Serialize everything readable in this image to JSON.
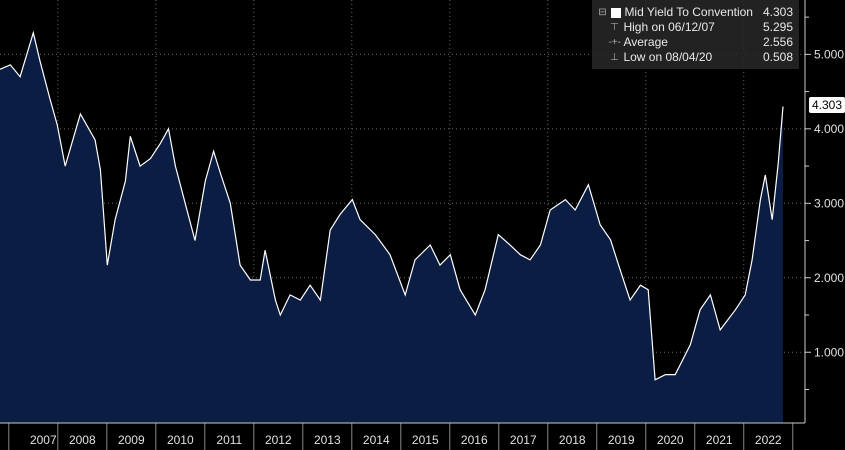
{
  "chart_data": {
    "type": "area",
    "title": "",
    "xlabel": "",
    "ylabel": "",
    "xlim": [
      2006.82,
      2023.25
    ],
    "ylim": [
      0.05,
      5.73
    ],
    "x_tick_labels": [
      "2007",
      "2008",
      "2009",
      "2010",
      "2011",
      "2012",
      "2013",
      "2014",
      "2015",
      "2016",
      "2017",
      "2018",
      "2019",
      "2020",
      "2021",
      "2022"
    ],
    "y_ticks": [
      1,
      2,
      3,
      4,
      5
    ],
    "y_tick_labels": [
      "1.000",
      "2.000",
      "3.000",
      "4.000",
      "5.000"
    ],
    "grid": true,
    "legend_position": "top-right",
    "last_value_label": "4.303",
    "legend": [
      {
        "label": "Mid Yield To Convention",
        "value": "4.303",
        "icon": "white-square"
      },
      {
        "label": "High on 06/12/07",
        "value": "5.295",
        "icon": "high-marker"
      },
      {
        "label": "Average",
        "value": "2.556",
        "icon": "average-marker"
      },
      {
        "label": "Low on 08/04/20",
        "value": "0.508",
        "icon": "low-marker"
      }
    ],
    "series": [
      {
        "name": "Mid Yield To Convention",
        "x": [
          2006.82,
          2007.03,
          2007.23,
          2007.5,
          2007.64,
          2007.84,
          2007.99,
          2008.15,
          2008.46,
          2008.76,
          2008.87,
          2009.01,
          2009.17,
          2009.38,
          2009.48,
          2009.68,
          2009.89,
          2010.09,
          2010.26,
          2010.4,
          2010.6,
          2010.8,
          2011.01,
          2011.18,
          2011.32,
          2011.52,
          2011.72,
          2011.93,
          2012.13,
          2012.23,
          2012.44,
          2012.54,
          2012.74,
          2012.95,
          2013.15,
          2013.36,
          2013.56,
          2013.76,
          2014.01,
          2014.17,
          2014.48,
          2014.78,
          2015.09,
          2015.29,
          2015.6,
          2015.8,
          2016.01,
          2016.21,
          2016.52,
          2016.72,
          2016.99,
          2017.23,
          2017.44,
          2017.64,
          2017.85,
          2018.05,
          2018.36,
          2018.56,
          2018.83,
          2019.07,
          2019.28,
          2019.48,
          2019.68,
          2019.89,
          2020.05,
          2020.19,
          2020.4,
          2020.6,
          2020.91,
          2021.11,
          2021.32,
          2021.52,
          2021.83,
          2022.03,
          2022.17,
          2022.34,
          2022.44,
          2022.58,
          2022.7,
          2022.8
        ],
        "y": [
          4.8,
          4.86,
          4.7,
          5.29,
          4.9,
          4.4,
          4.05,
          3.5,
          4.2,
          3.85,
          3.45,
          2.17,
          2.78,
          3.3,
          3.9,
          3.5,
          3.6,
          3.8,
          4.0,
          3.5,
          3.0,
          2.5,
          3.3,
          3.7,
          3.4,
          3.0,
          2.17,
          1.97,
          1.97,
          2.37,
          1.7,
          1.5,
          1.77,
          1.7,
          1.9,
          1.7,
          2.64,
          2.85,
          3.05,
          2.78,
          2.58,
          2.31,
          1.77,
          2.24,
          2.44,
          2.17,
          2.31,
          1.84,
          1.5,
          1.84,
          2.58,
          2.44,
          2.31,
          2.24,
          2.44,
          2.91,
          3.05,
          2.91,
          3.25,
          2.71,
          2.51,
          2.1,
          1.7,
          1.9,
          1.84,
          0.63,
          0.7,
          0.7,
          1.1,
          1.57,
          1.77,
          1.3,
          1.57,
          1.77,
          2.24,
          3.05,
          3.38,
          2.78,
          3.52,
          4.3
        ]
      }
    ],
    "colors": {
      "fill": "#0b1d42",
      "line": "#ffffff",
      "grid": "#666666",
      "axis": "#cccccc"
    }
  }
}
